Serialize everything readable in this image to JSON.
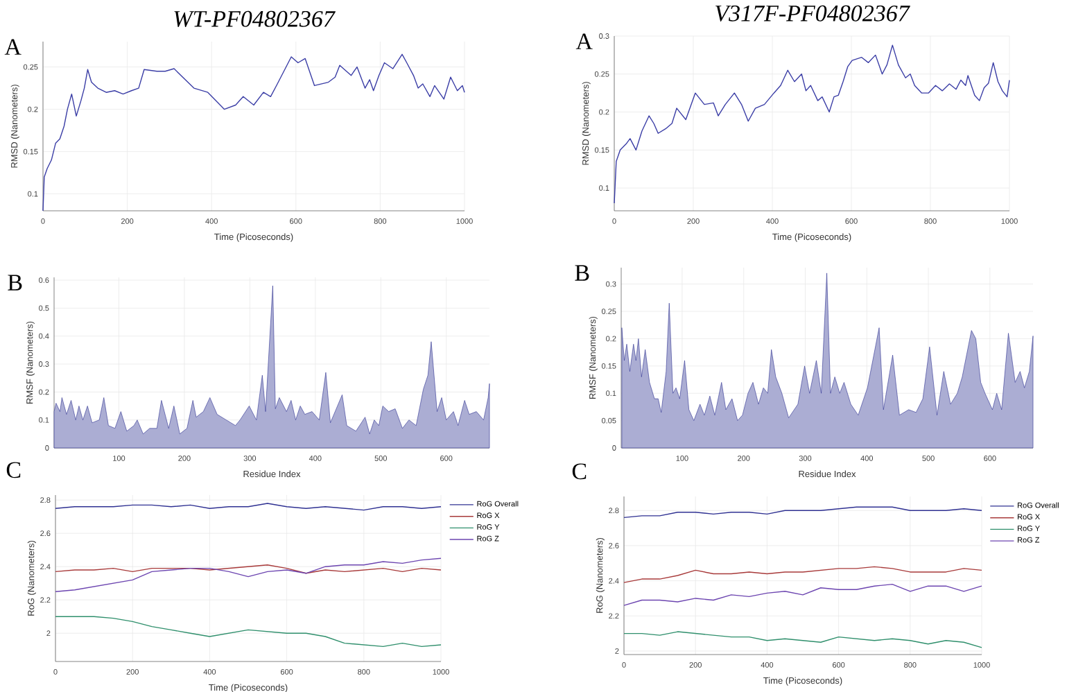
{
  "chart_data": [
    {
      "type": "line",
      "title": "WT-PF04802367",
      "annotations": [
        "A"
      ],
      "xlabel": "Time (Picoseconds)",
      "ylabel": "RMSD (Nanometers)",
      "xlim": [
        0,
        1000
      ],
      "ylim": [
        0.08,
        0.28
      ],
      "xticks": [
        0,
        200,
        400,
        600,
        800,
        1000
      ],
      "yticks": [
        0.1,
        0.15,
        0.2,
        0.25
      ],
      "grid": true,
      "series": [
        {
          "color": "#3b3ea6",
          "x": [
            0,
            3,
            10,
            20,
            30,
            40,
            50,
            58,
            68,
            79,
            90,
            98,
            106,
            115,
            130,
            150,
            170,
            190,
            210,
            227,
            240,
            270,
            290,
            311,
            358,
            391,
            430,
            457,
            475,
            500,
            523,
            540,
            556,
            589,
            605,
            622,
            644,
            677,
            693,
            704,
            731,
            745,
            764,
            775,
            784,
            797,
            810,
            830,
            852,
            863,
            879,
            890,
            901,
            918,
            929,
            951,
            967,
            983,
            995,
            1000
          ],
          "values": [
            0.08,
            0.12,
            0.13,
            0.14,
            0.16,
            0.165,
            0.18,
            0.2,
            0.218,
            0.192,
            0.21,
            0.225,
            0.247,
            0.232,
            0.225,
            0.22,
            0.222,
            0.218,
            0.222,
            0.225,
            0.247,
            0.245,
            0.245,
            0.248,
            0.225,
            0.22,
            0.2,
            0.205,
            0.215,
            0.205,
            0.22,
            0.215,
            0.23,
            0.262,
            0.255,
            0.26,
            0.228,
            0.232,
            0.238,
            0.252,
            0.24,
            0.25,
            0.225,
            0.235,
            0.222,
            0.24,
            0.255,
            0.248,
            0.265,
            0.255,
            0.24,
            0.225,
            0.23,
            0.215,
            0.228,
            0.212,
            0.238,
            0.222,
            0.228,
            0.22
          ]
        }
      ]
    },
    {
      "type": "line",
      "title": "V317F-PF04802367",
      "annotations": [
        "A"
      ],
      "xlabel": "Time (Picoseconds)",
      "ylabel": "RMSD (Nanometers)",
      "xlim": [
        0,
        1000
      ],
      "ylim": [
        0.07,
        0.3
      ],
      "xticks": [
        0,
        200,
        400,
        600,
        800,
        1000
      ],
      "yticks": [
        0.1,
        0.15,
        0.2,
        0.25,
        0.3
      ],
      "grid": true,
      "series": [
        {
          "color": "#3b3ea6",
          "x": [
            0,
            5,
            15,
            30,
            40,
            55,
            70,
            88,
            100,
            111,
            130,
            146,
            158,
            181,
            205,
            228,
            251,
            263,
            281,
            304,
            322,
            339,
            357,
            380,
            404,
            421,
            439,
            456,
            474,
            485,
            497,
            515,
            526,
            544,
            556,
            567,
            579,
            591,
            602,
            626,
            643,
            661,
            678,
            690,
            704,
            719,
            737,
            749,
            760,
            778,
            795,
            813,
            830,
            848,
            865,
            877,
            889,
            895,
            912,
            924,
            936,
            947,
            959,
            971,
            982,
            994,
            1000
          ],
          "values": [
            0.08,
            0.135,
            0.15,
            0.158,
            0.165,
            0.15,
            0.175,
            0.195,
            0.185,
            0.172,
            0.178,
            0.185,
            0.205,
            0.19,
            0.225,
            0.21,
            0.212,
            0.195,
            0.21,
            0.225,
            0.21,
            0.188,
            0.205,
            0.21,
            0.225,
            0.235,
            0.255,
            0.24,
            0.25,
            0.228,
            0.235,
            0.215,
            0.22,
            0.2,
            0.22,
            0.222,
            0.24,
            0.26,
            0.268,
            0.272,
            0.265,
            0.275,
            0.25,
            0.262,
            0.288,
            0.262,
            0.245,
            0.25,
            0.235,
            0.225,
            0.225,
            0.235,
            0.228,
            0.237,
            0.23,
            0.242,
            0.235,
            0.248,
            0.222,
            0.215,
            0.232,
            0.238,
            0.265,
            0.24,
            0.228,
            0.22,
            0.242
          ]
        }
      ]
    },
    {
      "type": "area",
      "annotations": [
        "B"
      ],
      "xlabel": "Residue Index",
      "ylabel": "RMSF (Nanometers)",
      "xlim": [
        1,
        666
      ],
      "ylim": [
        0,
        0.61
      ],
      "xticks": [
        100,
        200,
        300,
        400,
        500,
        600
      ],
      "yticks": [
        0,
        0.1,
        0.2,
        0.3,
        0.4,
        0.5,
        0.6
      ],
      "grid": true,
      "series": [
        {
          "color": "#2d3190",
          "x": [
            1,
            4,
            10,
            13,
            20,
            27,
            34,
            39,
            45,
            52,
            59,
            70,
            77,
            84,
            94,
            103,
            112,
            123,
            128,
            137,
            147,
            158,
            165,
            176,
            184,
            193,
            204,
            213,
            218,
            229,
            239,
            250,
            264,
            278,
            285,
            299,
            310,
            319,
            324,
            335,
            339,
            345,
            356,
            363,
            370,
            377,
            384,
            395,
            406,
            416,
            423,
            441,
            448,
            462,
            476,
            483,
            490,
            497,
            503,
            512,
            522,
            533,
            543,
            554,
            565,
            572,
            577,
            586,
            593,
            600,
            611,
            618,
            628,
            635,
            646,
            657,
            664,
            666
          ],
          "values": [
            0.13,
            0.16,
            0.13,
            0.18,
            0.12,
            0.17,
            0.1,
            0.15,
            0.1,
            0.15,
            0.09,
            0.1,
            0.18,
            0.08,
            0.07,
            0.13,
            0.06,
            0.08,
            0.1,
            0.05,
            0.07,
            0.07,
            0.17,
            0.07,
            0.15,
            0.05,
            0.07,
            0.17,
            0.11,
            0.13,
            0.18,
            0.12,
            0.1,
            0.08,
            0.1,
            0.15,
            0.1,
            0.26,
            0.13,
            0.58,
            0.14,
            0.18,
            0.13,
            0.17,
            0.1,
            0.15,
            0.12,
            0.13,
            0.1,
            0.27,
            0.09,
            0.19,
            0.08,
            0.06,
            0.11,
            0.05,
            0.1,
            0.08,
            0.15,
            0.13,
            0.14,
            0.07,
            0.1,
            0.08,
            0.21,
            0.26,
            0.38,
            0.13,
            0.18,
            0.1,
            0.13,
            0.08,
            0.17,
            0.12,
            0.13,
            0.1,
            0.18,
            0.23
          ]
        }
      ]
    },
    {
      "type": "area",
      "annotations": [
        "B"
      ],
      "xlabel": "Residue Index",
      "ylabel": "RMSF (Nanometers)",
      "xlim": [
        1,
        670
      ],
      "ylim": [
        0,
        0.33
      ],
      "xticks": [
        100,
        200,
        300,
        400,
        500,
        600
      ],
      "yticks": [
        0,
        0.05,
        0.1,
        0.15,
        0.2,
        0.25,
        0.3
      ],
      "grid": true,
      "series": [
        {
          "color": "#2d3190",
          "x": [
            2,
            6,
            10,
            15,
            21,
            25,
            29,
            34,
            40,
            47,
            55,
            61,
            66,
            74,
            79,
            85,
            90,
            96,
            104,
            111,
            119,
            129,
            136,
            145,
            153,
            164,
            171,
            181,
            190,
            198,
            207,
            215,
            224,
            232,
            239,
            245,
            252,
            262,
            273,
            288,
            299,
            307,
            318,
            326,
            335,
            341,
            348,
            356,
            363,
            374,
            386,
            401,
            420,
            427,
            442,
            453,
            468,
            480,
            491,
            502,
            514,
            525,
            536,
            547,
            555,
            570,
            577,
            585,
            592,
            604,
            611,
            619,
            630,
            641,
            649,
            656,
            664,
            670
          ],
          "values": [
            0.22,
            0.16,
            0.19,
            0.14,
            0.19,
            0.16,
            0.2,
            0.13,
            0.18,
            0.12,
            0.09,
            0.09,
            0.065,
            0.14,
            0.265,
            0.1,
            0.11,
            0.09,
            0.16,
            0.07,
            0.05,
            0.08,
            0.06,
            0.095,
            0.06,
            0.12,
            0.07,
            0.09,
            0.05,
            0.06,
            0.1,
            0.12,
            0.08,
            0.11,
            0.1,
            0.18,
            0.13,
            0.1,
            0.055,
            0.08,
            0.15,
            0.1,
            0.16,
            0.1,
            0.32,
            0.1,
            0.13,
            0.1,
            0.12,
            0.08,
            0.06,
            0.11,
            0.22,
            0.07,
            0.17,
            0.06,
            0.07,
            0.065,
            0.09,
            0.185,
            0.06,
            0.14,
            0.08,
            0.1,
            0.13,
            0.215,
            0.2,
            0.12,
            0.1,
            0.07,
            0.1,
            0.07,
            0.21,
            0.12,
            0.14,
            0.11,
            0.14,
            0.205
          ]
        }
      ]
    },
    {
      "type": "line",
      "annotations": [
        "C"
      ],
      "xlabel": "Time (Picoseconds)",
      "ylabel": "RoG (Nanometers)",
      "xlim": [
        0,
        1000
      ],
      "ylim": [
        1.83,
        2.83
      ],
      "xticks": [
        0,
        200,
        400,
        600,
        800,
        1000
      ],
      "yticks": [
        2,
        2.2,
        2.4,
        2.6,
        2.8
      ],
      "grid": true,
      "legend": "top right",
      "x": [
        0,
        50,
        100,
        150,
        200,
        250,
        300,
        350,
        400,
        450,
        500,
        550,
        600,
        650,
        700,
        750,
        800,
        850,
        900,
        950,
        1000
      ],
      "series": [
        {
          "name": "RoG Overall",
          "color": "#2f3192",
          "values": [
            2.75,
            2.76,
            2.76,
            2.76,
            2.77,
            2.77,
            2.76,
            2.77,
            2.75,
            2.76,
            2.76,
            2.78,
            2.76,
            2.75,
            2.76,
            2.75,
            2.74,
            2.76,
            2.76,
            2.75,
            2.76
          ]
        },
        {
          "name": "RoG X",
          "color": "#a83a3a",
          "values": [
            2.37,
            2.38,
            2.38,
            2.39,
            2.37,
            2.39,
            2.39,
            2.39,
            2.38,
            2.39,
            2.4,
            2.41,
            2.39,
            2.36,
            2.38,
            2.37,
            2.38,
            2.39,
            2.37,
            2.39,
            2.38
          ]
        },
        {
          "name": "RoG Y",
          "color": "#2f8f6c",
          "values": [
            2.1,
            2.1,
            2.1,
            2.09,
            2.07,
            2.04,
            2.02,
            2.0,
            1.98,
            2.0,
            2.02,
            2.01,
            2.0,
            2.0,
            1.98,
            1.94,
            1.93,
            1.92,
            1.94,
            1.92,
            1.93
          ]
        },
        {
          "name": "RoG Z",
          "color": "#6c45b0",
          "values": [
            2.25,
            2.26,
            2.28,
            2.3,
            2.32,
            2.37,
            2.38,
            2.39,
            2.39,
            2.37,
            2.34,
            2.37,
            2.38,
            2.36,
            2.4,
            2.41,
            2.41,
            2.43,
            2.42,
            2.44,
            2.45
          ]
        }
      ]
    },
    {
      "type": "line",
      "annotations": [
        "C"
      ],
      "xlabel": "Time (Picoseconds)",
      "ylabel": "RoG (Nanometers)",
      "xlim": [
        0,
        1000
      ],
      "ylim": [
        1.98,
        2.88
      ],
      "xticks": [
        0,
        200,
        400,
        600,
        800,
        1000
      ],
      "yticks": [
        2,
        2.2,
        2.4,
        2.6,
        2.8
      ],
      "grid": true,
      "legend": "top right",
      "x": [
        0,
        50,
        100,
        150,
        200,
        250,
        300,
        350,
        400,
        450,
        500,
        550,
        600,
        650,
        700,
        750,
        800,
        850,
        900,
        950,
        1000
      ],
      "series": [
        {
          "name": "RoG Overall",
          "color": "#2f3192",
          "values": [
            2.76,
            2.77,
            2.77,
            2.79,
            2.79,
            2.78,
            2.79,
            2.79,
            2.78,
            2.8,
            2.8,
            2.8,
            2.81,
            2.82,
            2.82,
            2.82,
            2.8,
            2.8,
            2.8,
            2.81,
            2.8
          ]
        },
        {
          "name": "RoG X",
          "color": "#a83a3a",
          "values": [
            2.39,
            2.41,
            2.41,
            2.43,
            2.46,
            2.44,
            2.44,
            2.45,
            2.44,
            2.45,
            2.45,
            2.46,
            2.47,
            2.47,
            2.48,
            2.47,
            2.45,
            2.45,
            2.45,
            2.47,
            2.46
          ]
        },
        {
          "name": "RoG Y",
          "color": "#2f8f6c",
          "values": [
            2.1,
            2.1,
            2.09,
            2.11,
            2.1,
            2.09,
            2.08,
            2.08,
            2.06,
            2.07,
            2.06,
            2.05,
            2.08,
            2.07,
            2.06,
            2.07,
            2.06,
            2.04,
            2.06,
            2.05,
            2.02
          ]
        },
        {
          "name": "RoG Z",
          "color": "#6c45b0",
          "values": [
            2.26,
            2.29,
            2.29,
            2.28,
            2.3,
            2.29,
            2.32,
            2.31,
            2.33,
            2.34,
            2.32,
            2.36,
            2.35,
            2.35,
            2.37,
            2.38,
            2.34,
            2.37,
            2.37,
            2.34,
            2.37
          ]
        }
      ]
    }
  ]
}
